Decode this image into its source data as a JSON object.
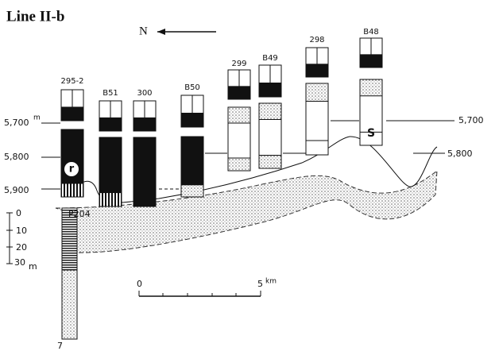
{
  "title": "Line II-b",
  "north": "N",
  "columns": [
    {
      "label": "295-2"
    },
    {
      "label": "B51"
    },
    {
      "label": "300"
    },
    {
      "label": "B50"
    },
    {
      "label": "299"
    },
    {
      "label": "B49"
    },
    {
      "label": "298"
    },
    {
      "label": "B48"
    }
  ],
  "left_elevations": [
    "5,700",
    "5,800",
    "5,900"
  ],
  "left_unit": "m",
  "right_elevations": [
    "5,700",
    "5,800"
  ],
  "markers": [
    "r",
    "S"
  ],
  "borehole": {
    "label": "P204",
    "depths": [
      "0",
      "10",
      "20",
      "30"
    ],
    "unit": "m",
    "bottom": "7"
  },
  "scale": {
    "start": "0",
    "end": "5",
    "unit": "km"
  }
}
